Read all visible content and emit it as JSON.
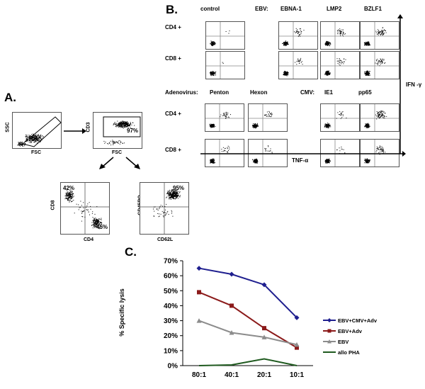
{
  "panels": {
    "a": "A.",
    "b": "B.",
    "c": "C."
  },
  "panel_a": {
    "gate1": {
      "y_axis": "SSC",
      "x_axis": "FSC"
    },
    "gate2": {
      "y_axis": "CD3",
      "x_axis": "FSC",
      "pct": "97%"
    },
    "gate3": {
      "y_axis": "CD8",
      "x_axis": "CD4",
      "pct_top": "42%",
      "pct_bottom": "45%"
    },
    "gate4": {
      "y_axis": "CD45RO",
      "x_axis": "CD62L",
      "pct": "95%"
    }
  },
  "panel_b": {
    "top_headers": {
      "control": "control",
      "ebv": "EBV:",
      "ebna": "EBNA-1",
      "lmp2": "LMP2",
      "bzlf1": "BZLF1"
    },
    "bottom_headers": {
      "adv": "Adenovirus:",
      "penton": "Penton",
      "hexon": "Hexon",
      "cmv": "CMV:",
      "ie1": "IE1",
      "pp65": "pp65"
    },
    "rows": {
      "cd4_top": "CD4 +",
      "cd8_top": "CD8 +",
      "cd4_bottom": "CD4 +",
      "cd8_bottom": "CD8 +"
    },
    "y_axis": "IFN -γ",
    "x_axis": "TNF-α"
  },
  "chart_data": {
    "type": "line",
    "title": "",
    "xlabel": "",
    "ylabel": "% Specific lysis",
    "categories": [
      "80:1",
      "40:1",
      "20:1",
      "10:1"
    ],
    "ylim": [
      0,
      70
    ],
    "yticks": [
      "0%",
      "10%",
      "20%",
      "30%",
      "40%",
      "50%",
      "60%",
      "70%"
    ],
    "legend_position": "right",
    "series": [
      {
        "name": "EBV+CMV+Adv",
        "values": [
          65,
          61,
          54,
          32
        ],
        "color": "#1f1f8f",
        "marker": "diamond"
      },
      {
        "name": "EBV+Adv",
        "values": [
          49,
          40,
          25,
          12
        ],
        "color": "#8b1a1a",
        "marker": "square"
      },
      {
        "name": "EBV",
        "values": [
          30,
          22,
          19,
          14
        ],
        "color": "#8c8c8c",
        "marker": "triangle"
      },
      {
        "name": "allo PHA",
        "values": [
          0,
          0.5,
          4.5,
          0
        ],
        "color": "#1f5a1f",
        "marker": "none"
      }
    ]
  }
}
